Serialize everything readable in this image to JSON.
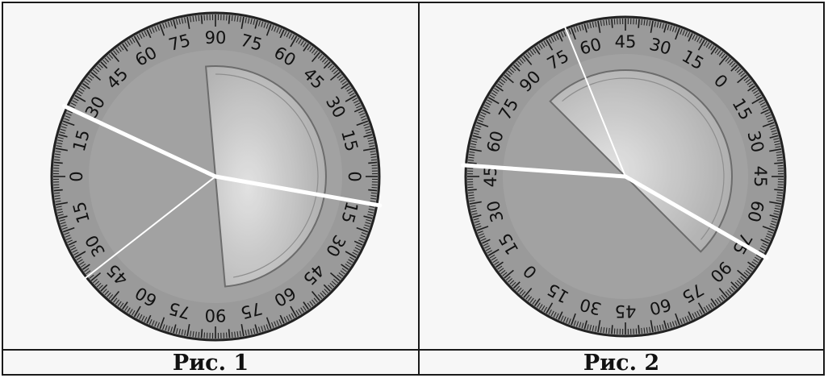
{
  "figures": [
    {
      "id": "fig1",
      "caption": "Рис. 1",
      "labels": [
        {
          "text": "90",
          "angle": 90
        },
        {
          "text": "75",
          "angle": 105
        },
        {
          "text": "60",
          "angle": 120
        },
        {
          "text": "45",
          "angle": 135
        },
        {
          "text": "30",
          "angle": 150
        },
        {
          "text": "15",
          "angle": 165
        },
        {
          "text": "0",
          "angle": 180
        },
        {
          "text": "15",
          "angle": 195
        },
        {
          "text": "30",
          "angle": 210
        },
        {
          "text": "45",
          "angle": 225
        },
        {
          "text": "60",
          "angle": 240
        },
        {
          "text": "75",
          "angle": 255
        },
        {
          "text": "90",
          "angle": 270
        },
        {
          "text": "75",
          "angle": 285
        },
        {
          "text": "60",
          "angle": 300
        },
        {
          "text": "45",
          "angle": 315
        },
        {
          "text": "30",
          "angle": 330
        },
        {
          "text": "15",
          "angle": 345
        },
        {
          "text": "0",
          "angle": 0
        },
        {
          "text": "15",
          "angle": 15
        },
        {
          "text": "30",
          "angle": 30
        },
        {
          "text": "45",
          "angle": 45
        },
        {
          "text": "60",
          "angle": 60
        },
        {
          "text": "75",
          "angle": 75
        }
      ],
      "protractor_start_angle": 95,
      "rays": [
        {
          "angle": 155,
          "thick": true
        },
        {
          "angle": -10,
          "thick": true
        },
        {
          "angle": 218,
          "thick": false
        }
      ]
    },
    {
      "id": "fig2",
      "caption": "Рис. 2",
      "labels": [
        {
          "text": "45",
          "angle": 90
        },
        {
          "text": "60",
          "angle": 105
        },
        {
          "text": "75",
          "angle": 120
        },
        {
          "text": "90",
          "angle": 135
        },
        {
          "text": "75",
          "angle": 150
        },
        {
          "text": "60",
          "angle": 165
        },
        {
          "text": "45",
          "angle": 180
        },
        {
          "text": "30",
          "angle": 195
        },
        {
          "text": "15",
          "angle": 210
        },
        {
          "text": "0",
          "angle": 225
        },
        {
          "text": "15",
          "angle": 240
        },
        {
          "text": "30",
          "angle": 255
        },
        {
          "text": "45",
          "angle": 270
        },
        {
          "text": "60",
          "angle": 285
        },
        {
          "text": "75",
          "angle": 300
        },
        {
          "text": "90",
          "angle": 315
        },
        {
          "text": "75",
          "angle": 330
        },
        {
          "text": "60",
          "angle": 345
        },
        {
          "text": "45",
          "angle": 0
        },
        {
          "text": "30",
          "angle": 15
        },
        {
          "text": "15",
          "angle": 30
        },
        {
          "text": "0",
          "angle": 45
        },
        {
          "text": "15",
          "angle": 60
        },
        {
          "text": "30",
          "angle": 75
        }
      ],
      "protractor_start_angle": 135,
      "rays": [
        {
          "angle": 176,
          "thick": true
        },
        {
          "angle": -30,
          "thick": true
        },
        {
          "angle": 112,
          "thick": false
        }
      ]
    }
  ],
  "colors": {
    "dial": "#9a9a9a",
    "dial_edge": "#222222",
    "tick": "#1e1e1e",
    "protractor_light": "#e6e6e6",
    "protractor_dark": "#a8a8a8",
    "ray": "#ffffff"
  }
}
